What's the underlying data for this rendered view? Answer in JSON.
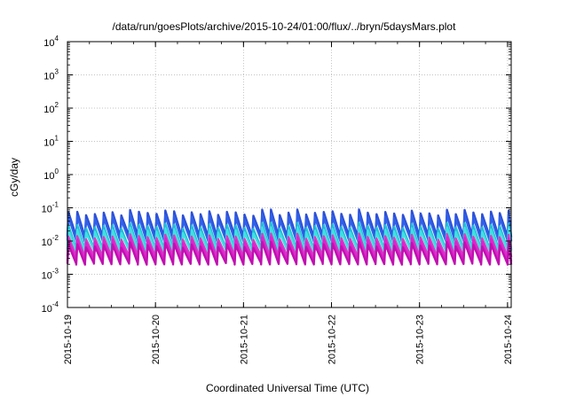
{
  "chart_data": {
    "type": "line",
    "title": "/data/run/goesPlots/archive/2015-10-24/01:00/flux/../bryn/5daysMars.plot",
    "xlabel": "Coordinated Universal Time (UTC)",
    "ylabel": "cGy/day",
    "xscale": "time",
    "xlim": [
      "2015-10-19T00:00",
      "2015-10-24T01:00"
    ],
    "x_ticks": [
      "2015-10-19",
      "2015-10-20",
      "2015-10-21",
      "2015-10-22",
      "2015-10-23",
      "2015-10-24"
    ],
    "yscale": "log",
    "ylim": [
      0.0001,
      10000
    ],
    "y_ticks": [
      {
        "base": "10",
        "exp": "-4",
        "value": 0.0001
      },
      {
        "base": "10",
        "exp": "-3",
        "value": 0.001
      },
      {
        "base": "10",
        "exp": "-2",
        "value": 0.01
      },
      {
        "base": "10",
        "exp": "-1",
        "value": 0.1
      },
      {
        "base": "10",
        "exp": "0",
        "value": 1
      },
      {
        "base": "10",
        "exp": "1",
        "value": 10
      },
      {
        "base": "10",
        "exp": "2",
        "value": 100
      },
      {
        "base": "10",
        "exp": "3",
        "value": 1000
      },
      {
        "base": "10",
        "exp": "4",
        "value": 10000
      }
    ],
    "grid": true,
    "legend": "none",
    "pattern": {
      "description": "sawtooth, roughly 10 peaks per day",
      "cycles_per_day": 10,
      "series": [
        {
          "color": "#2b4fd8",
          "peak": 0.075,
          "trough": 0.012
        },
        {
          "color": "#3060e8",
          "peak": 0.055,
          "trough": 0.009
        },
        {
          "color": "#20c0d8",
          "peak": 0.03,
          "trough": 0.005
        },
        {
          "color": "#40e0e0",
          "peak": 0.022,
          "trough": 0.0045
        },
        {
          "color": "#d040c0",
          "peak": 0.014,
          "trough": 0.003
        },
        {
          "color": "#e020d0",
          "peak": 0.011,
          "trough": 0.0022
        },
        {
          "color": "#c010b0",
          "peak": 0.008,
          "trough": 0.0018
        }
      ]
    }
  }
}
